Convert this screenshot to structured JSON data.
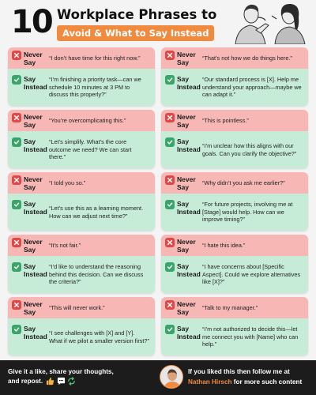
{
  "header": {
    "number": "10",
    "title_line1": "Workplace Phrases to",
    "title_line2": "Avoid & What to Say Instead"
  },
  "labels": {
    "never_line1": "Never",
    "never_line2": "Say",
    "say_line1": "Say",
    "say_line2": "Instead"
  },
  "colors": {
    "accent": "#f08a3e",
    "never_bg": "#f6b7b5",
    "say_bg": "#c6ecd7",
    "never_icon": "#e04848",
    "say_icon": "#3aa56a",
    "footer_bg": "#1c1c1c"
  },
  "icons": {
    "never": "x-icon",
    "say": "check-icon"
  },
  "cards": [
    {
      "never": "“I don’t have time for this right now.”",
      "say": "“I’m finishing a priority task—can we schedule 10 minutes at 3 PM to discuss this properly?”"
    },
    {
      "never": "“That’s not how we do things here.”",
      "say": "“Our standard process is [X]. Help me understand your approach—maybe we can adapt it.”"
    },
    {
      "never": "“You’re overcomplicating this.”",
      "say": "“Let’s simplify. What’s the core outcome we need? We can start there.”"
    },
    {
      "never": "“This is pointless.”",
      "say": "“I’m unclear how this aligns with our goals. Can you clarify the objective?”"
    },
    {
      "never": "“I told you so.”",
      "say": "“Let’s use this as a learning moment. How can we adjust next time?”"
    },
    {
      "never": "“Why didn’t you ask me earlier?”",
      "say": "“For future projects, involving me at [Stage] would help. How can we improve timing?”"
    },
    {
      "never": "“It’s not fair.”",
      "say": "“I’d like to understand the reasoning behind this decision. Can we discuss the criteria?”"
    },
    {
      "never": "“I hate this idea.”",
      "say": "“I have concerns about [Specific Aspect]. Could we explore alternatives like [X]?”"
    },
    {
      "never": "“This will never work.”",
      "say": "“I see challenges with [X] and [Y]. What if we pilot a smaller version first?”"
    },
    {
      "never": "“Talk to my manager.”",
      "say": "“I’m not authorized to decide this—let me connect you with [Name] who can help.”"
    }
  ],
  "footer": {
    "left_line1": "Give it a like, share your thoughts,",
    "left_line2": "and repost.",
    "reaction_icons": [
      "thumbs-up-icon",
      "comment-icon",
      "repost-icon"
    ],
    "right_line1": "If you liked this then follow me at",
    "author": "Nathan Hirsch",
    "right_line2_rest": " for more such content"
  }
}
